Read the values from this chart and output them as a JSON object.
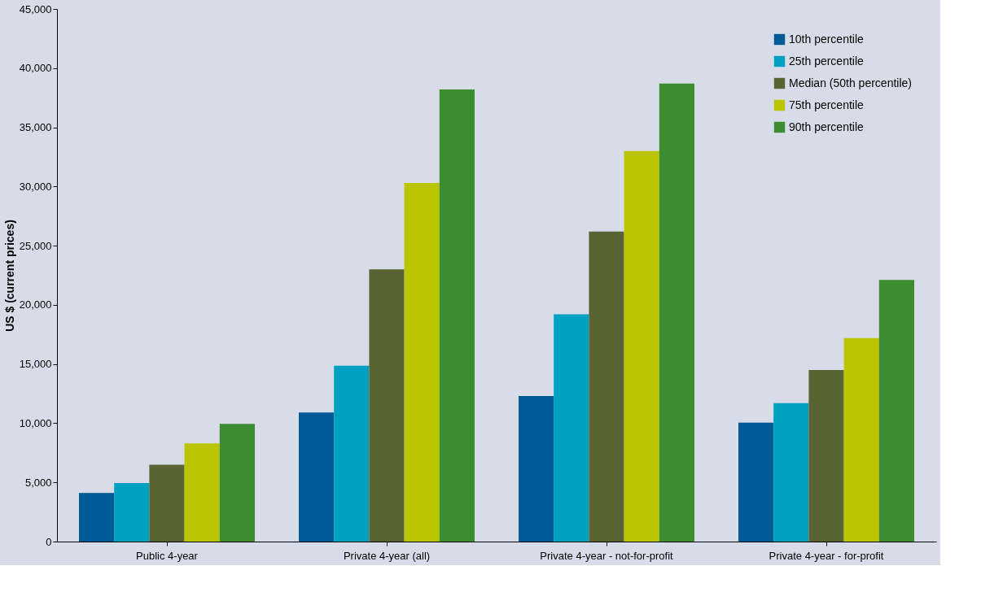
{
  "chart_data": {
    "type": "bar",
    "ylabel": "US $ (current prices)",
    "categories": [
      "Public 4-year",
      "Private 4-year (all)",
      "Private 4-year - not-for-profit",
      "Private 4-year - for-profit"
    ],
    "series": [
      {
        "name": "10th percentile",
        "color": "#005a96",
        "values": [
          4100,
          10900,
          12300,
          10050
        ]
      },
      {
        "name": "25th percentile",
        "color": "#00a0c0",
        "values": [
          4950,
          14850,
          19200,
          11700
        ]
      },
      {
        "name": "Median (50th percentile)",
        "color": "#5a6433",
        "values": [
          6500,
          23000,
          26200,
          14500
        ]
      },
      {
        "name": "75th percentile",
        "color": "#bac400",
        "values": [
          8300,
          30300,
          33000,
          17200
        ]
      },
      {
        "name": "90th percentile",
        "color": "#3c8c30",
        "values": [
          9950,
          38200,
          38700,
          22100
        ]
      }
    ],
    "ylim": [
      0,
      45000
    ],
    "yticks": [
      0,
      {
        "value": 5000,
        "label": "5,000"
      },
      {
        "value": 10000,
        "label": "10,000"
      },
      {
        "value": 15000,
        "label": "15,000"
      },
      {
        "value": 20000,
        "label": "20,000"
      },
      {
        "value": 25000,
        "label": "25,000"
      },
      {
        "value": 30000,
        "label": "30,000"
      },
      {
        "value": 35000,
        "label": "35,000"
      },
      {
        "value": 40000,
        "label": "40,000"
      },
      {
        "value": 45000,
        "label": "45,000"
      }
    ],
    "grid": false,
    "legend": "top right"
  }
}
